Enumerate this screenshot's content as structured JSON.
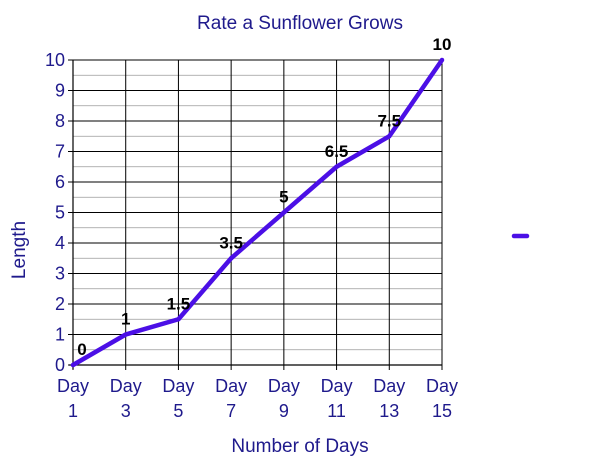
{
  "chart_data": {
    "type": "line",
    "title": "Rate a Sunflower Grows",
    "xlabel": "Number of Days",
    "ylabel": "Length",
    "categories": [
      [
        "Day",
        "1"
      ],
      [
        "Day",
        "3"
      ],
      [
        "Day",
        "5"
      ],
      [
        "Day",
        "7"
      ],
      [
        "Day",
        "9"
      ],
      [
        "Day",
        "11"
      ],
      [
        "Day",
        "13"
      ],
      [
        "Day",
        "15"
      ]
    ],
    "series": [
      {
        "values": [
          0,
          1,
          1.5,
          3.5,
          5,
          6.5,
          7.5,
          10
        ],
        "labels": [
          "0",
          "1",
          "1.5",
          "3.5",
          "5",
          "6.5",
          "7.5",
          "10"
        ],
        "color": "#4b0fe6"
      }
    ],
    "ylim": [
      0,
      10
    ],
    "yticks": [
      "0",
      "1",
      "2",
      "3",
      "4",
      "5",
      "6",
      "7",
      "8",
      "9",
      "10"
    ],
    "grid": true,
    "minor_grid_y": true,
    "legend": {
      "placement": "right",
      "entries": [
        {
          "color": "#4b0fe6"
        }
      ]
    }
  }
}
